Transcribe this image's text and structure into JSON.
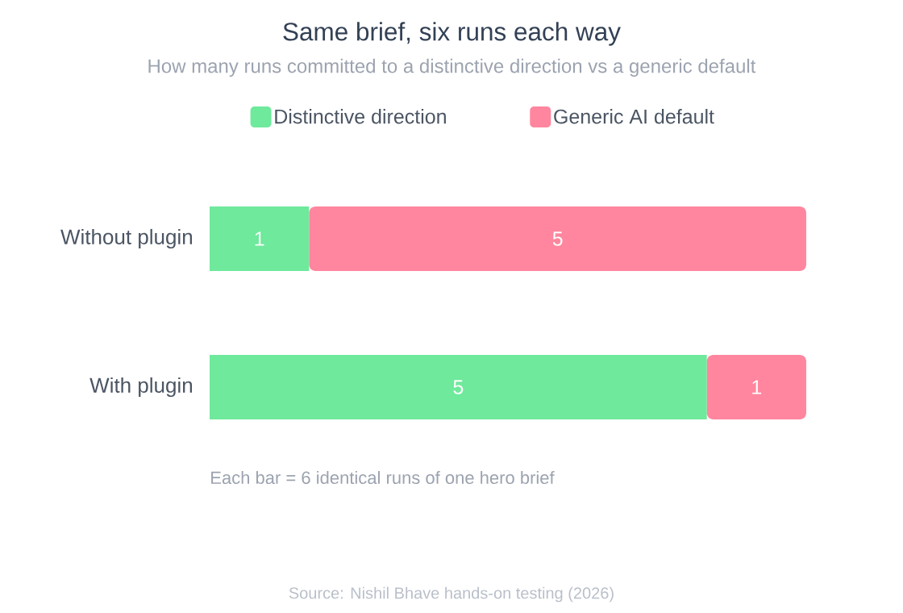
{
  "chart_data": {
    "type": "bar",
    "orientation": "horizontal",
    "stacked": true,
    "title": "Same brief, six runs each way",
    "subtitle": "How many runs committed to a distinctive direction vs a generic default",
    "categories": [
      "Without plugin",
      "With plugin"
    ],
    "series": [
      {
        "name": "Distinctive direction",
        "color": "#6fe99c",
        "values": [
          1,
          5
        ]
      },
      {
        "name": "Generic AI default",
        "color": "#ff869e",
        "values": [
          5,
          1
        ]
      }
    ],
    "data_labels": true,
    "legend": "top",
    "tick_labels": "y",
    "annotations": [
      "Each bar = 6 identical runs of one hero brief",
      "Source: Nishil Bhave hands-on testing (2026)"
    ]
  }
}
